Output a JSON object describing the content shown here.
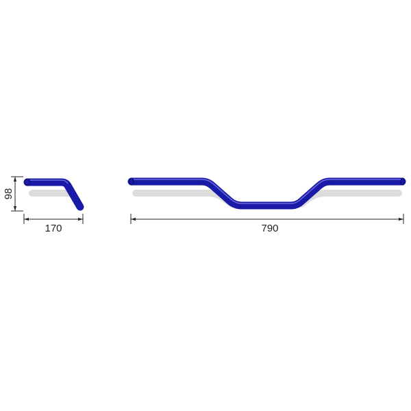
{
  "drawing": {
    "side_view": {
      "height_dimension": "98",
      "width_dimension": "170"
    },
    "front_view": {
      "width_dimension": "790"
    },
    "colors": {
      "tube": "#1a1aa8",
      "tube_highlight": "#6a6ae0",
      "shadow": "#dcdcdc",
      "dimension_line": "#222222"
    }
  }
}
